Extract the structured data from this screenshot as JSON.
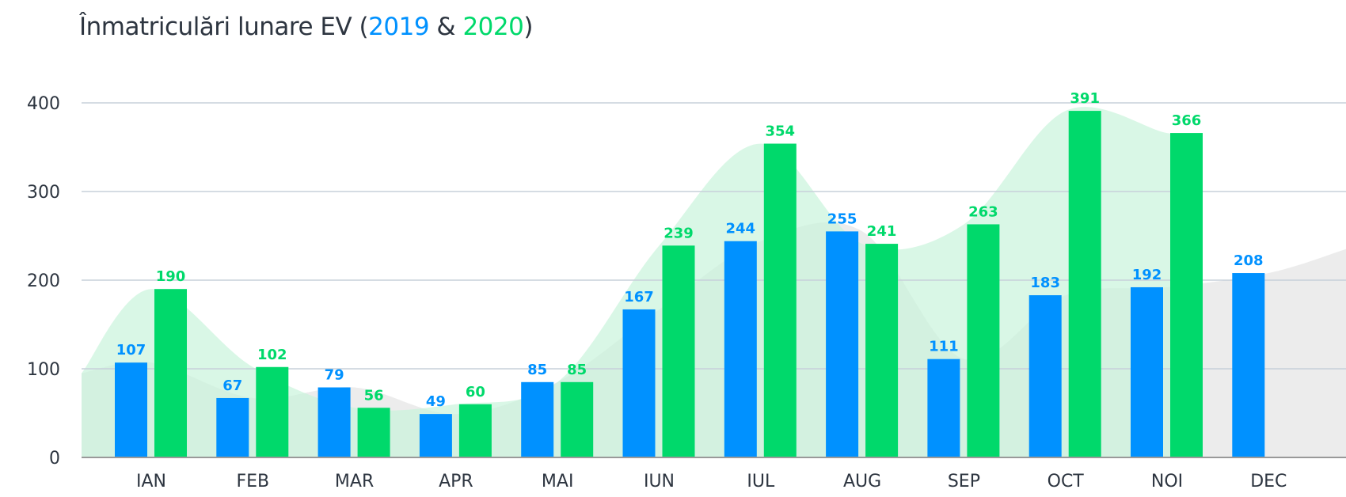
{
  "chart_data": {
    "type": "bar",
    "title": {
      "prefix": "Înmatriculări lunare EV (",
      "series_a": "2019",
      "sep": " & ",
      "series_b": "2020",
      "suffix": ")"
    },
    "categories": [
      "IAN",
      "FEB",
      "MAR",
      "APR",
      "MAI",
      "IUN",
      "IUL",
      "AUG",
      "SEP",
      "OCT",
      "NOI",
      "DEC"
    ],
    "series": [
      {
        "name": "2019",
        "color": "#0091ff",
        "values": [
          107,
          67,
          79,
          49,
          85,
          167,
          244,
          255,
          111,
          183,
          192,
          208
        ]
      },
      {
        "name": "2020",
        "color": "#00d96b",
        "values": [
          190,
          102,
          56,
          60,
          85,
          239,
          354,
          241,
          263,
          391,
          366,
          null
        ]
      }
    ],
    "background_areas": [
      {
        "series": "2019",
        "color": "#e6e6e6"
      },
      {
        "series": "2020",
        "color": "#c9f4dc"
      }
    ],
    "ylim": [
      0,
      400
    ],
    "yticks": [
      0,
      100,
      200,
      300,
      400
    ],
    "grid": true,
    "legend": "in title"
  }
}
